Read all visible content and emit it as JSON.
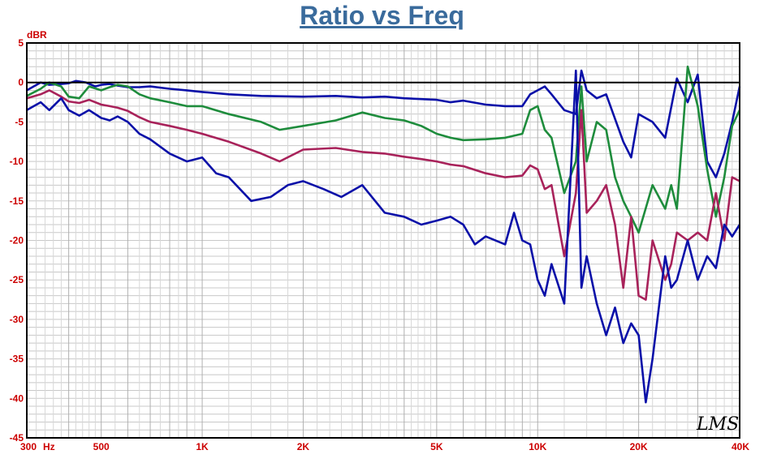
{
  "chart_data": {
    "type": "line",
    "title": "Ratio vs Freq",
    "ylabel": "dBR",
    "x_unit_label": "Hz",
    "xscale": "log",
    "xlim": [
      300,
      40000
    ],
    "ylim": [
      -45,
      5
    ],
    "y_ticks": [
      5,
      0,
      -5,
      -10,
      -15,
      -20,
      -25,
      -30,
      -35,
      -40,
      -45
    ],
    "x_ticks": [
      {
        "value": 300,
        "label": "300"
      },
      {
        "value": 500,
        "label": "500"
      },
      {
        "value": 1000,
        "label": "1K"
      },
      {
        "value": 2000,
        "label": "2K"
      },
      {
        "value": 5000,
        "label": "5K"
      },
      {
        "value": 10000,
        "label": "10K"
      },
      {
        "value": 20000,
        "label": "20K"
      },
      {
        "value": 40000,
        "label": "40K"
      }
    ],
    "grid": true,
    "watermark": "LMS",
    "series": [
      {
        "color": "#0a10a8",
        "x": [
          300,
          330,
          350,
          380,
          400,
          420,
          450,
          480,
          500,
          530,
          560,
          600,
          650,
          700,
          800,
          900,
          1000,
          1200,
          1500,
          2000,
          2500,
          3000,
          3500,
          4000,
          4500,
          5000,
          5500,
          6000,
          7000,
          8000,
          9000,
          9500,
          10000,
          10500,
          11000,
          12000,
          13000,
          13500,
          14000,
          15000,
          16000,
          18000,
          19000,
          20000,
          22000,
          24000,
          26000,
          28000,
          30000,
          32000,
          34000,
          36000,
          38000,
          40000
        ],
        "y": [
          -1,
          0,
          -0.3,
          -0.2,
          -0.1,
          0.2,
          0,
          -0.5,
          -0.3,
          -0.2,
          -0.4,
          -0.6,
          -0.6,
          -0.5,
          -0.8,
          -1.0,
          -1.2,
          -1.5,
          -1.7,
          -1.8,
          -1.7,
          -1.9,
          -1.8,
          -2.0,
          -2.1,
          -2.2,
          -2.5,
          -2.3,
          -2.8,
          -3.0,
          -3.0,
          -1.5,
          -1.0,
          -0.5,
          -1.5,
          -3.5,
          -4.0,
          1.5,
          -1.0,
          -2.0,
          -1.5,
          -7.5,
          -9.5,
          -4.0,
          -5.0,
          -7.0,
          0.5,
          -2.5,
          1.0,
          -10.0,
          -12.0,
          -9.0,
          -5.0,
          -0.5
        ]
      },
      {
        "color": "#1e8c3c",
        "x": [
          300,
          330,
          350,
          380,
          400,
          430,
          460,
          500,
          530,
          560,
          600,
          650,
          700,
          800,
          900,
          1000,
          1200,
          1500,
          1700,
          2000,
          2500,
          3000,
          3500,
          4000,
          4500,
          5000,
          5500,
          6000,
          7000,
          8000,
          9000,
          9500,
          10000,
          10500,
          11000,
          12000,
          13000,
          13500,
          14000,
          15000,
          16000,
          17000,
          18000,
          19000,
          20000,
          22000,
          24000,
          25000,
          26000,
          28000,
          30000,
          32000,
          34000,
          36000,
          38000,
          40000
        ],
        "y": [
          -1.7,
          -0.8,
          0,
          -0.5,
          -1.8,
          -2,
          -0.5,
          -1,
          -0.6,
          -0.3,
          -0.5,
          -1.5,
          -2,
          -2.5,
          -3,
          -3,
          -4,
          -5,
          -6,
          -5.5,
          -4.8,
          -3.8,
          -4.5,
          -4.8,
          -5.5,
          -6.5,
          -7,
          -7.3,
          -7.2,
          -7,
          -6.5,
          -3.5,
          -3,
          -6,
          -7,
          -14,
          -10,
          -0.5,
          -10,
          -5,
          -6,
          -12,
          -15,
          -17,
          -19,
          -13,
          -16,
          -13,
          -16,
          2,
          -3,
          -11,
          -17,
          -12,
          -5.5,
          -3.5
        ]
      },
      {
        "color": "#a8225a",
        "x": [
          300,
          330,
          350,
          380,
          400,
          430,
          460,
          500,
          530,
          560,
          600,
          650,
          700,
          800,
          900,
          1000,
          1200,
          1500,
          1700,
          2000,
          2500,
          3000,
          3500,
          4000,
          4500,
          5000,
          5500,
          6000,
          7000,
          8000,
          9000,
          9500,
          10000,
          10500,
          11000,
          12000,
          13000,
          13500,
          14000,
          15000,
          16000,
          17000,
          18000,
          19000,
          20000,
          21000,
          22000,
          24000,
          25000,
          26000,
          28000,
          30000,
          32000,
          34000,
          36000,
          38000,
          40000
        ],
        "y": [
          -2,
          -1.5,
          -1,
          -1.8,
          -2.4,
          -2.6,
          -2.2,
          -2.8,
          -3.0,
          -3.2,
          -3.6,
          -4.4,
          -5,
          -5.5,
          -6,
          -6.5,
          -7.5,
          -9,
          -10,
          -8.5,
          -8.3,
          -8.8,
          -9.0,
          -9.4,
          -9.7,
          -10.0,
          -10.4,
          -10.6,
          -11.5,
          -12.0,
          -11.8,
          -10.5,
          -11.0,
          -13.5,
          -13.0,
          -22,
          -14,
          -3.5,
          -16.5,
          -15,
          -13,
          -18,
          -26,
          -17,
          -27,
          -27.5,
          -20,
          -25,
          -23,
          -19,
          -20,
          -19,
          -20,
          -14,
          -20,
          -12,
          -12.5
        ]
      },
      {
        "color": "#0a10a8",
        "x": [
          300,
          330,
          350,
          380,
          400,
          430,
          460,
          500,
          530,
          560,
          600,
          650,
          700,
          800,
          900,
          1000,
          1100,
          1200,
          1400,
          1600,
          1800,
          2000,
          2300,
          2600,
          3000,
          3500,
          4000,
          4500,
          5000,
          5500,
          6000,
          6500,
          7000,
          8000,
          8500,
          9000,
          9500,
          10000,
          10500,
          11000,
          12000,
          13000,
          13500,
          14000,
          15000,
          16000,
          17000,
          18000,
          19000,
          20000,
          21000,
          22000,
          24000,
          25000,
          26000,
          28000,
          30000,
          32000,
          34000,
          36000,
          38000,
          40000
        ],
        "y": [
          -3.5,
          -2.5,
          -3.5,
          -2.0,
          -3.5,
          -4.2,
          -3.5,
          -4.5,
          -4.8,
          -4.3,
          -5.0,
          -6.5,
          -7.2,
          -9.0,
          -10.0,
          -9.5,
          -11.5,
          -12.0,
          -15.0,
          -14.5,
          -13.0,
          -12.5,
          -13.5,
          -14.5,
          -13.0,
          -16.5,
          -17.0,
          -18.0,
          -17.5,
          -17.0,
          -18.0,
          -20.5,
          -19.5,
          -20.5,
          -16.5,
          -20.0,
          -20.5,
          -25.0,
          -27.0,
          -23.0,
          -28.0,
          1.5,
          -26.0,
          -22.0,
          -28.0,
          -32.0,
          -28.5,
          -33.0,
          -30.5,
          -32.0,
          -40.5,
          -35.0,
          -22.0,
          -26.0,
          -25.0,
          -20.0,
          -25.0,
          -22.0,
          -23.5,
          -18.0,
          -19.5,
          -18.0
        ]
      }
    ]
  }
}
